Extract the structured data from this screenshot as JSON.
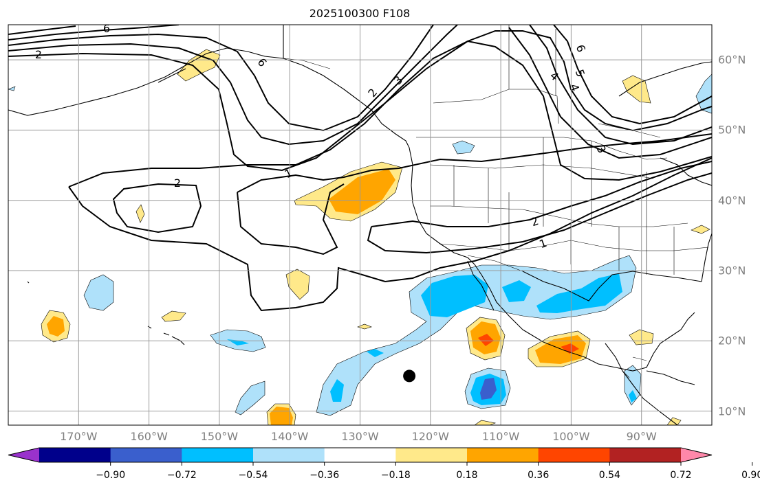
{
  "title": "2025100300 F108",
  "map": {
    "lon_range": [
      -180,
      -80
    ],
    "lat_range": [
      8,
      65
    ],
    "grid": true,
    "lon_ticks": [
      {
        "value": -170,
        "label": "170°W"
      },
      {
        "value": -160,
        "label": "160°W"
      },
      {
        "value": -150,
        "label": "150°W"
      },
      {
        "value": -140,
        "label": "140°W"
      },
      {
        "value": -130,
        "label": "130°W"
      },
      {
        "value": -120,
        "label": "120°W"
      },
      {
        "value": -110,
        "label": "110°W"
      },
      {
        "value": -100,
        "label": "100°W"
      },
      {
        "value": -90,
        "label": "90°W"
      }
    ],
    "lat_ticks": [
      {
        "value": 60,
        "label": "60°N"
      },
      {
        "value": 50,
        "label": "50°N"
      },
      {
        "value": 40,
        "label": "40°N"
      },
      {
        "value": 30,
        "label": "30°N"
      },
      {
        "value": 20,
        "label": "20°N"
      },
      {
        "value": 10,
        "label": "10°N"
      }
    ],
    "contour_labels": [
      "2",
      "6",
      "6",
      "2",
      "3",
      "6",
      "5",
      "4",
      "4",
      "3",
      "2",
      "1",
      "2",
      "1"
    ],
    "marker": {
      "lon": -123,
      "lat": 15
    }
  },
  "colorbar": {
    "extend": "both",
    "ticks": [
      "−0.90",
      "−0.72",
      "−0.54",
      "−0.36",
      "−0.18",
      "0.18",
      "0.36",
      "0.54",
      "0.72",
      "0.90"
    ],
    "colors": [
      "#9932cc",
      "#00008b",
      "#3a5fcd",
      "#00bfff",
      "#afe1fa",
      "#ffffff",
      "#ffe98a",
      "#ffa500",
      "#ff4500",
      "#b22222",
      "#ff88aa"
    ]
  }
}
